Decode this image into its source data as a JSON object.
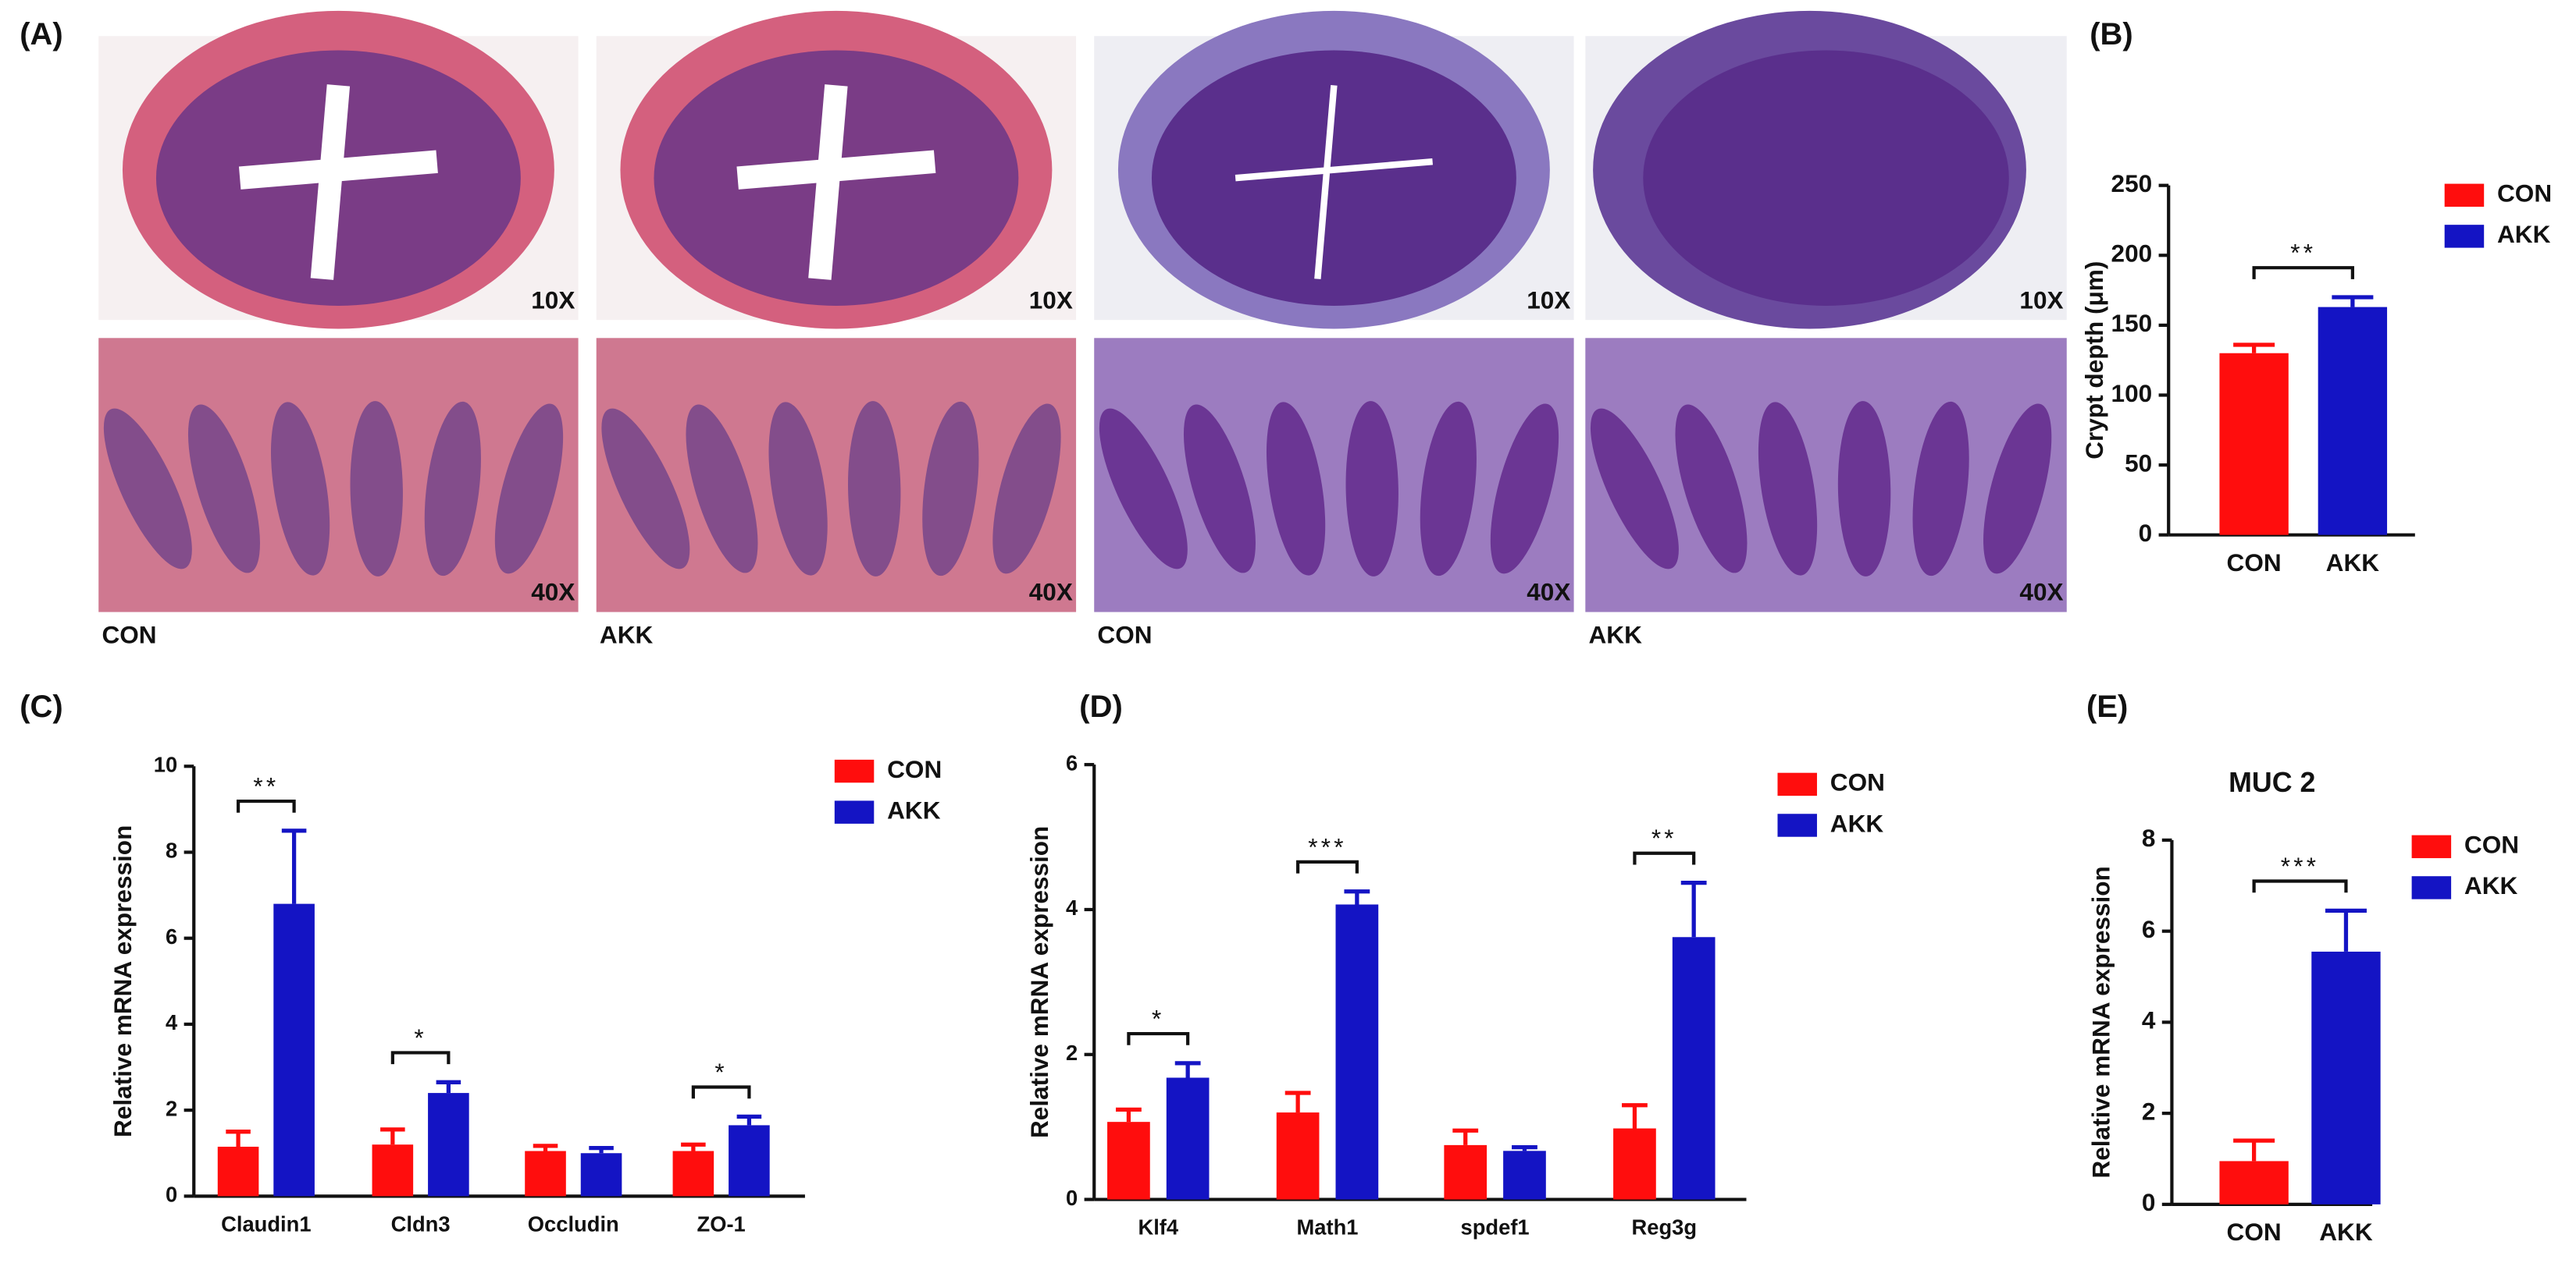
{
  "panel_labels": [
    "(A)",
    "(B)",
    "(C)",
    "(D)",
    "(E)"
  ],
  "panel_a": {
    "magnifications": [
      "10X",
      "10X",
      "10X",
      "10X",
      "40X",
      "40X",
      "40X",
      "40X"
    ],
    "groups": [
      "CON",
      "AKK",
      "CON",
      "AKK"
    ]
  },
  "chart_data": [
    {
      "type": "bar",
      "ylabel": "Crypt depth (μm)",
      "categories": [
        "CON",
        "AKK"
      ],
      "values": [
        130,
        163
      ],
      "errors": [
        6,
        7
      ],
      "colors": [
        "#ff0d0d",
        "#1414c4"
      ],
      "ylim": [
        0,
        250
      ],
      "yticks": [
        0,
        50,
        100,
        150,
        200,
        250
      ],
      "significance": "**",
      "legend": "upper right"
    },
    {
      "type": "bar",
      "ylabel": "Relative mRNA expression",
      "categories": [
        "Claudin1",
        "Cldn3",
        "Occludin",
        "ZO-1"
      ],
      "series": [
        {
          "name": "CON",
          "color": "#ff0d0d",
          "values": [
            1.15,
            1.2,
            1.05,
            1.05
          ],
          "errors": [
            0.35,
            0.35,
            0.12,
            0.15
          ]
        },
        {
          "name": "AKK",
          "color": "#1414c4",
          "values": [
            6.8,
            2.4,
            1.0,
            1.65
          ],
          "errors": [
            1.7,
            0.25,
            0.12,
            0.2
          ]
        }
      ],
      "ylim": [
        0,
        10
      ],
      "yticks": [
        0,
        2,
        4,
        6,
        8,
        10
      ],
      "significance": [
        "**",
        "*",
        null,
        "*"
      ],
      "legend": "upper right"
    },
    {
      "type": "bar",
      "ylabel": "Relative mRNA expression",
      "categories": [
        "Klf4",
        "Math1",
        "spdef1",
        "Reg3g"
      ],
      "series": [
        {
          "name": "CON",
          "color": "#ff0d0d",
          "values": [
            1.07,
            1.2,
            0.75,
            0.98
          ],
          "errors": [
            0.17,
            0.27,
            0.2,
            0.32
          ]
        },
        {
          "name": "AKK",
          "color": "#1414c4",
          "values": [
            1.68,
            4.07,
            0.67,
            3.62
          ],
          "errors": [
            0.2,
            0.18,
            0.05,
            0.75
          ]
        }
      ],
      "ylim": [
        0,
        6
      ],
      "yticks": [
        0,
        2,
        4,
        6
      ],
      "significance": [
        "*",
        "***",
        null,
        "**"
      ],
      "legend": "upper right"
    },
    {
      "type": "bar",
      "title": "MUC 2",
      "ylabel": "Relative mRNA expression",
      "categories": [
        "CON",
        "AKK"
      ],
      "values": [
        0.95,
        5.55
      ],
      "errors": [
        0.45,
        0.9
      ],
      "colors": [
        "#ff0d0d",
        "#1414c4"
      ],
      "ylim": [
        0,
        8
      ],
      "yticks": [
        0,
        2,
        4,
        6,
        8
      ],
      "significance": "***",
      "legend": "upper right"
    }
  ]
}
